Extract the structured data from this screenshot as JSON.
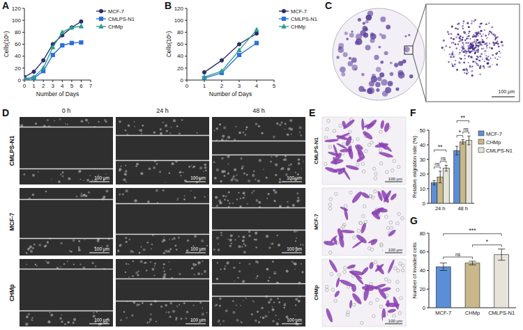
{
  "chart_data": [
    {
      "type": "line",
      "panel_label": "A",
      "x_label": "Number of Days",
      "y_label": "Cells(10⁵)",
      "x": [
        0,
        1,
        2,
        3,
        4,
        5,
        6
      ],
      "series": [
        {
          "name": "MCF-7",
          "color": "#2b2d6e",
          "marker": "circle",
          "line_style": "solid",
          "values": [
            5,
            14,
            33,
            60,
            75,
            88,
            98
          ]
        },
        {
          "name": "CMLPS-N1",
          "color": "#2a6fdb",
          "marker": "square",
          "line_style": "solid",
          "values": [
            1,
            3,
            15,
            42,
            58,
            62,
            63
          ]
        },
        {
          "name": "CHMp",
          "color": "#2e9e93",
          "marker": "triangle",
          "line_style": "solid",
          "values": [
            2,
            5,
            20,
            55,
            80,
            88,
            90
          ]
        }
      ],
      "xlim": [
        0,
        7
      ],
      "xticks": [
        0,
        1,
        2,
        3,
        4,
        5,
        6,
        7
      ],
      "ylim": [
        0,
        120
      ],
      "yticks": [
        0,
        20,
        40,
        60,
        80,
        100,
        120
      ],
      "legend": "right"
    },
    {
      "type": "line",
      "panel_label": "B",
      "x_label": "Number of Days",
      "y_label": "Cells(10⁵)",
      "x": [
        1,
        2,
        3,
        4
      ],
      "series": [
        {
          "name": "MCF-7",
          "color": "#2b2d6e",
          "marker": "circle",
          "line_style": "solid",
          "values": [
            13,
            33,
            60,
            78
          ]
        },
        {
          "name": "CMLPS-N1",
          "color": "#2a6fdb",
          "marker": "square",
          "line_style": "solid",
          "values": [
            3,
            12,
            42,
            62
          ]
        },
        {
          "name": "CHMp",
          "color": "#2e9e93",
          "marker": "triangle",
          "line_style": "solid",
          "values": [
            5,
            15,
            50,
            84
          ]
        }
      ],
      "xlim": [
        0,
        5
      ],
      "xticks": [
        0,
        1,
        2,
        3,
        4,
        5
      ],
      "ylim": [
        0,
        120
      ],
      "yticks": [
        0,
        20,
        40,
        60,
        80,
        100,
        120
      ],
      "legend": "right"
    },
    {
      "type": "bar",
      "panel_label": "F",
      "y_label": "Relative migration rate (%)",
      "categories": [
        "24 h",
        "48 h"
      ],
      "series": [
        {
          "name": "MCF-7",
          "color": "#5a8fd8",
          "values": [
            14,
            36
          ],
          "errors": [
            1.5,
            3
          ]
        },
        {
          "name": "CHMp",
          "color": "#c8b88a",
          "values": [
            18,
            42
          ],
          "errors": [
            4,
            1.5
          ]
        },
        {
          "name": "CMLPS-N1",
          "color": "#e6e4da",
          "values": [
            24,
            43
          ],
          "errors": [
            2,
            3
          ]
        }
      ],
      "ylim": [
        0,
        50
      ],
      "yticks": [
        0,
        10,
        20,
        30,
        40,
        50
      ],
      "legend": "right",
      "annotations": [
        {
          "text": "ns",
          "category": "24 h",
          "between": [
            "MCF-7",
            "CHMp"
          ]
        },
        {
          "text": "ns",
          "category": "24 h",
          "between": [
            "CHMp",
            "CMLPS-N1"
          ]
        },
        {
          "text": "**",
          "category": "24 h",
          "between": [
            "MCF-7",
            "CMLPS-N1"
          ]
        },
        {
          "text": "*",
          "category": "48 h",
          "between": [
            "MCF-7",
            "CHMp"
          ]
        },
        {
          "text": "ns",
          "category": "48 h",
          "between": [
            "CHMp",
            "CMLPS-N1"
          ]
        },
        {
          "text": "**",
          "category": "48 h",
          "between": [
            "MCF-7",
            "CMLPS-N1"
          ]
        }
      ]
    },
    {
      "type": "bar",
      "panel_label": "G",
      "y_label": "Number of invaded cells",
      "categories": [
        "MCF-7",
        "CHMp",
        "CMLPS-N1"
      ],
      "values": [
        44,
        48,
        57
      ],
      "errors": [
        4,
        2,
        6
      ],
      "colors": [
        "#5a8fd8",
        "#c8b88a",
        "#e6e4da"
      ],
      "ylim": [
        0,
        80
      ],
      "yticks": [
        0,
        20,
        40,
        60,
        80
      ],
      "annotations": [
        {
          "text": "ns",
          "between": [
            "MCF-7",
            "CHMp"
          ]
        },
        {
          "text": "*",
          "between": [
            "CHMp",
            "CMLPS-N1"
          ]
        },
        {
          "text": "***",
          "between": [
            "MCF-7",
            "CMLPS-N1"
          ]
        }
      ]
    }
  ],
  "images": [
    {
      "panel_label": "C",
      "scale_bar": "100 μm"
    },
    {
      "panel_label": "D",
      "rows": [
        "CMLPS-N1",
        "MCF-7",
        "CHMp"
      ],
      "columns": [
        "0 h",
        "24 h",
        "48 h"
      ],
      "scale_bar": "100 μm"
    },
    {
      "panel_label": "E",
      "rows": [
        "CMLPS-N1",
        "MCF-7",
        "CHMp"
      ],
      "scale_bar": "100 μm"
    }
  ]
}
